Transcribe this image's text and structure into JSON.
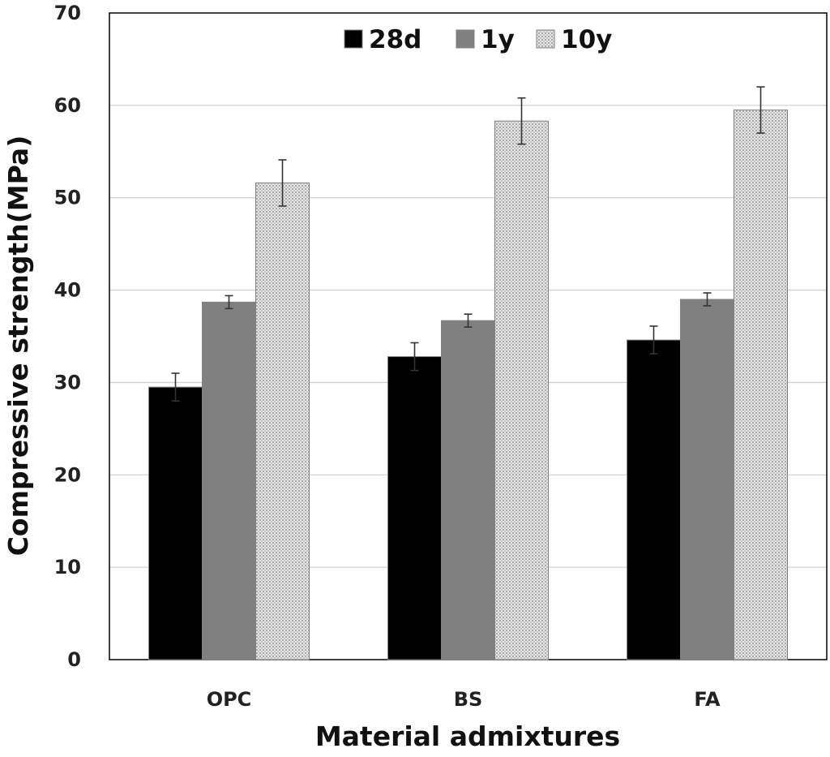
{
  "chart_data": {
    "type": "bar",
    "title": "",
    "xlabel": "Material admixtures",
    "ylabel": "Compressive strength(MPa)",
    "ylim": [
      0,
      70
    ],
    "yticks": [
      "0",
      "10",
      "20",
      "30",
      "40",
      "50",
      "60",
      "70"
    ],
    "grid": true,
    "legend_position": "top-center",
    "categories": [
      "OPC",
      "BS",
      "FA"
    ],
    "series": [
      {
        "name": "28d",
        "values": [
          29.5,
          32.8,
          34.6
        ],
        "errors": [
          1.5,
          1.5,
          1.5
        ],
        "color": "#000000",
        "pattern": "solid"
      },
      {
        "name": "1y",
        "values": [
          38.7,
          36.7,
          39.0
        ],
        "errors": [
          0.7,
          0.7,
          0.7
        ],
        "color": "#808080",
        "pattern": "solid"
      },
      {
        "name": "10y",
        "values": [
          51.6,
          58.3,
          59.5
        ],
        "errors": [
          2.5,
          2.5,
          2.5
        ],
        "color": "#d9d9d9",
        "pattern": "dotted"
      }
    ]
  }
}
